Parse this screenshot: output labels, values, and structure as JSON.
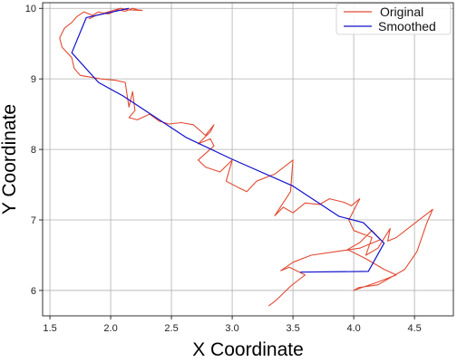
{
  "chart_data": {
    "type": "line",
    "xlabel": "X Coordinate",
    "ylabel": "Y Coordinate",
    "xlim": [
      1.44,
      4.82
    ],
    "ylim": [
      5.64,
      10.08
    ],
    "xticks": [
      1.5,
      2.0,
      2.5,
      3.0,
      3.5,
      4.0,
      4.5
    ],
    "xtick_labels": [
      "1.5",
      "2.0",
      "2.5",
      "3.0",
      "3.5",
      "4.0",
      "4.5"
    ],
    "yticks": [
      6,
      7,
      8,
      9,
      10
    ],
    "ytick_labels": [
      "6",
      "7",
      "8",
      "9",
      "10"
    ],
    "grid": true,
    "legend_position": "top-right",
    "series": [
      {
        "name": "Original",
        "color": "#e24a33",
        "points": [
          [
            3.3,
            5.78
          ],
          [
            3.36,
            5.86
          ],
          [
            3.42,
            5.96
          ],
          [
            3.48,
            6.06
          ],
          [
            3.54,
            6.14
          ],
          [
            3.6,
            6.22
          ],
          [
            3.54,
            6.27
          ],
          [
            3.47,
            6.33
          ],
          [
            3.4,
            6.28
          ],
          [
            3.5,
            6.4
          ],
          [
            3.65,
            6.5
          ],
          [
            3.85,
            6.55
          ],
          [
            4.05,
            6.6
          ],
          [
            4.22,
            6.72
          ],
          [
            4.15,
            6.85
          ],
          [
            4.05,
            6.68
          ],
          [
            3.95,
            6.58
          ],
          [
            4.1,
            6.45
          ],
          [
            4.25,
            6.3
          ],
          [
            4.35,
            6.22
          ],
          [
            4.2,
            6.12
          ],
          [
            4.0,
            6.0
          ],
          [
            4.04,
            6.04
          ],
          [
            4.2,
            6.08
          ],
          [
            4.42,
            6.3
          ],
          [
            4.52,
            6.55
          ],
          [
            4.6,
            6.95
          ],
          [
            4.65,
            7.15
          ],
          [
            4.5,
            6.95
          ],
          [
            4.35,
            6.75
          ],
          [
            4.28,
            6.7
          ],
          [
            4.3,
            6.88
          ],
          [
            4.2,
            6.6
          ],
          [
            4.1,
            6.5
          ],
          [
            4.15,
            6.75
          ],
          [
            4.0,
            6.85
          ],
          [
            3.96,
            7.0
          ],
          [
            4.05,
            7.3
          ],
          [
            3.98,
            7.2
          ],
          [
            3.92,
            7.25
          ],
          [
            3.8,
            7.3
          ],
          [
            3.72,
            7.22
          ],
          [
            3.6,
            7.24
          ],
          [
            3.5,
            7.1
          ],
          [
            3.42,
            7.18
          ],
          [
            3.35,
            7.06
          ],
          [
            3.48,
            7.4
          ],
          [
            3.5,
            7.85
          ],
          [
            3.35,
            7.65
          ],
          [
            3.2,
            7.55
          ],
          [
            3.12,
            7.4
          ],
          [
            3.05,
            7.46
          ],
          [
            2.95,
            7.55
          ],
          [
            3.0,
            7.85
          ],
          [
            2.9,
            7.68
          ],
          [
            2.78,
            7.75
          ],
          [
            2.72,
            7.85
          ],
          [
            2.85,
            8.05
          ],
          [
            2.82,
            8.15
          ],
          [
            2.72,
            8.08
          ],
          [
            2.82,
            8.25
          ],
          [
            2.85,
            8.35
          ],
          [
            2.78,
            8.2
          ],
          [
            2.68,
            8.35
          ],
          [
            2.58,
            8.38
          ],
          [
            2.48,
            8.36
          ],
          [
            2.4,
            8.4
          ],
          [
            2.32,
            8.5
          ],
          [
            2.22,
            8.42
          ],
          [
            2.15,
            8.45
          ],
          [
            2.2,
            8.55
          ],
          [
            2.18,
            8.82
          ],
          [
            2.15,
            8.6
          ],
          [
            2.12,
            8.95
          ],
          [
            2.04,
            8.98
          ],
          [
            1.92,
            9.0
          ],
          [
            1.75,
            9.05
          ],
          [
            1.7,
            9.15
          ],
          [
            1.68,
            9.3
          ],
          [
            1.6,
            9.45
          ],
          [
            1.58,
            9.58
          ],
          [
            1.62,
            9.72
          ],
          [
            1.68,
            9.8
          ],
          [
            1.72,
            9.88
          ],
          [
            1.78,
            9.95
          ],
          [
            1.85,
            9.9
          ],
          [
            1.9,
            9.95
          ],
          [
            1.98,
            9.92
          ],
          [
            2.06,
            9.98
          ],
          [
            2.12,
            9.96
          ],
          [
            2.18,
            10.0
          ],
          [
            2.22,
            9.98
          ],
          [
            2.26,
            9.97
          ],
          [
            2.14,
            9.98
          ],
          [
            2.08,
            10.0
          ],
          [
            1.98,
            9.95
          ],
          [
            1.88,
            9.9
          ],
          [
            1.82,
            9.85
          ]
        ]
      },
      {
        "name": "Smoothed",
        "color": "#1010cc",
        "points": [
          [
            3.56,
            6.26
          ],
          [
            4.12,
            6.27
          ],
          [
            4.25,
            6.67
          ],
          [
            4.08,
            6.96
          ],
          [
            3.88,
            7.05
          ],
          [
            3.5,
            7.48
          ],
          [
            3.0,
            7.86
          ],
          [
            2.62,
            8.17
          ],
          [
            2.1,
            8.76
          ],
          [
            1.9,
            8.95
          ],
          [
            1.68,
            9.37
          ],
          [
            1.8,
            9.87
          ],
          [
            2.15,
            10.0
          ]
        ]
      }
    ]
  }
}
